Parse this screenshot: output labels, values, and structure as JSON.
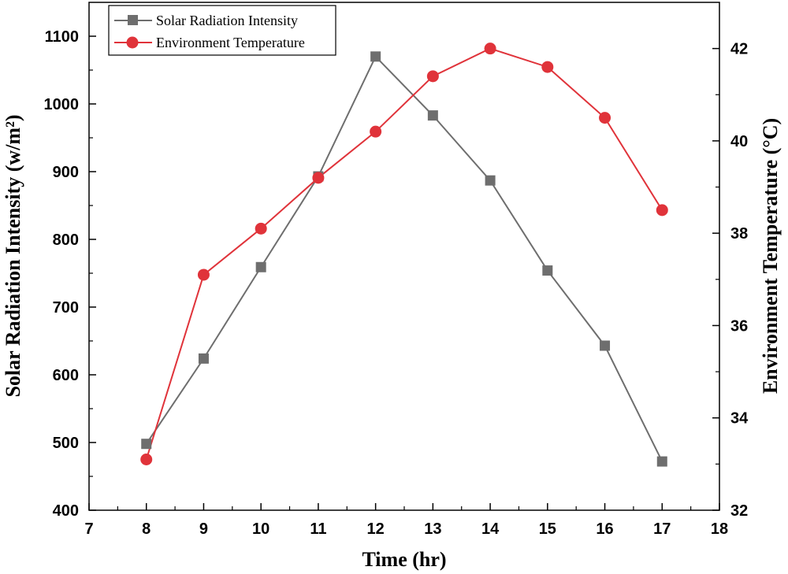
{
  "chart_data": {
    "type": "line",
    "title": "",
    "xlabel": "Time (hr)",
    "ylabel": "Solar Radiation Intensity (w/m²)",
    "y2label": "Environment Temperature (°C)",
    "xlim": [
      7,
      18
    ],
    "ylim": [
      400,
      1150
    ],
    "y2lim": [
      32,
      43
    ],
    "x_ticks": [
      7,
      8,
      9,
      10,
      11,
      12,
      13,
      14,
      15,
      16,
      17,
      18
    ],
    "y_ticks": [
      400,
      500,
      600,
      700,
      800,
      900,
      1000,
      1100
    ],
    "y2_ticks": [
      32,
      34,
      36,
      38,
      40,
      42
    ],
    "x": [
      8,
      9,
      10,
      11,
      12,
      13,
      14,
      15,
      16,
      17
    ],
    "legend_position": "top-left",
    "series": [
      {
        "name": "Solar Radiation Intensity",
        "axis": "left",
        "marker": "square",
        "color": "#6e6e6e",
        "values": [
          498,
          624,
          759,
          893,
          1070,
          983,
          887,
          754,
          643,
          472
        ]
      },
      {
        "name": "Environment Temperature",
        "axis": "right",
        "marker": "circle",
        "color": "#e0333a",
        "values": [
          33.1,
          37.1,
          38.1,
          39.2,
          40.2,
          41.4,
          42.0,
          41.6,
          40.5,
          38.5
        ]
      }
    ]
  }
}
